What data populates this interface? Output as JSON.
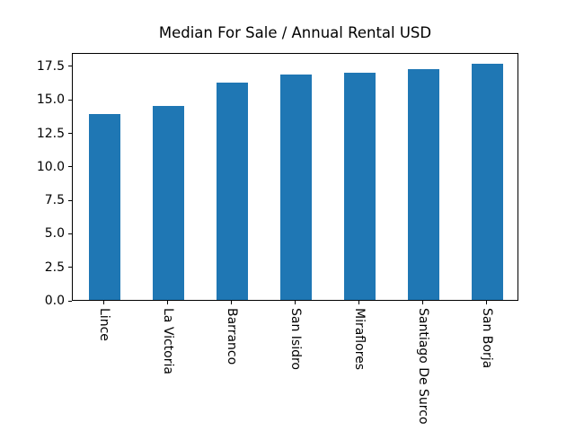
{
  "chart_data": {
    "type": "bar",
    "title": "Median For Sale / Annual Rental USD",
    "categories": [
      "Lince",
      "La Victoria",
      "Barranco",
      "San Isidro",
      "Miraflores",
      "Santiago De Surco",
      "San Borja"
    ],
    "values": [
      13.9,
      14.5,
      16.25,
      16.8,
      16.95,
      17.25,
      17.65
    ],
    "xlabel": "",
    "ylabel": "",
    "ylim": [
      0,
      18.5
    ],
    "yticks": [
      0.0,
      2.5,
      5.0,
      7.5,
      10.0,
      12.5,
      15.0,
      17.5
    ],
    "ytick_label_format_decimals": 1,
    "xtick_label_rotation_deg": 90,
    "bar_color": "#1f77b4",
    "bar_width_fraction": 0.5,
    "grid": false,
    "legend": false,
    "background_color": "#ffffff",
    "spine_color": "#000000",
    "text_color": "#000000"
  }
}
